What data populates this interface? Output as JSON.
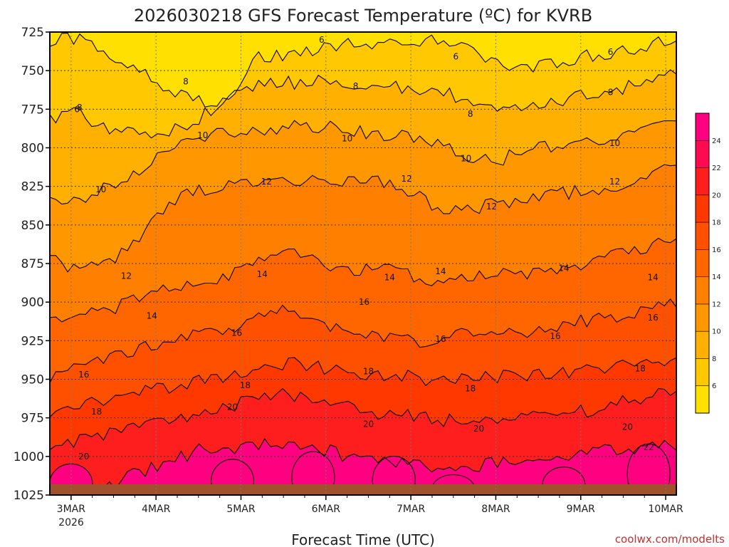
{
  "chart_data": {
    "type": "heatmap",
    "title": "2026030218 GFS Forecast Temperature (ºC) for KVRB",
    "xlabel": "Forecast Time (UTC)",
    "ylabel": "",
    "credit": "coolwx.com/modelts",
    "x_ticks": [
      "3MAR",
      "4MAR",
      "5MAR",
      "6MAR",
      "7MAR",
      "8MAR",
      "9MAR",
      "10MAR"
    ],
    "x_year": "2026",
    "y_axis_pressure_hPa": [
      725,
      750,
      775,
      800,
      825,
      850,
      875,
      900,
      925,
      950,
      975,
      1000,
      1025
    ],
    "y_tick_labels": [
      "725",
      "750",
      "775",
      "800",
      "825",
      "850",
      "875",
      "900",
      "925",
      "950",
      "975",
      "1000",
      "1025"
    ],
    "ylim": [
      1025,
      725
    ],
    "xlim_days": [
      2.75,
      10.125
    ],
    "grid": true,
    "legend": "right-colorbar",
    "colorbar_labels": [
      "6",
      "8",
      "10",
      "12",
      "14",
      "16",
      "18",
      "20",
      "22",
      "24"
    ],
    "color_levels": [
      4,
      6,
      8,
      10,
      12,
      14,
      16,
      18,
      20,
      22,
      24,
      26
    ],
    "colors": [
      "#ffe000",
      "#ffc800",
      "#ffb000",
      "#ff9800",
      "#ff8000",
      "#ff6600",
      "#ff5000",
      "#ff3800",
      "#ff1e1e",
      "#ff0a50",
      "#ff0080"
    ],
    "contour_levels": [
      6,
      8,
      10,
      12,
      14,
      16,
      18,
      20,
      22,
      24
    ],
    "ground_color": "#a0522d",
    "isotherm_pressure_hPa": {
      "6": [
        730,
        730,
        740,
        748,
        762,
        770,
        770,
        740,
        740,
        735,
        732,
        732,
        732,
        730,
        735,
        745,
        750,
        745,
        740,
        738,
        735,
        728
      ],
      "8": [
        780,
        778,
        790,
        790,
        788,
        782,
        765,
        760,
        758,
        756,
        758,
        760,
        762,
        762,
        770,
        778,
        775,
        770,
        765,
        762,
        758,
        750
      ],
      "10": [
        830,
        835,
        825,
        815,
        800,
        792,
        790,
        788,
        786,
        786,
        788,
        792,
        792,
        797,
        805,
        808,
        802,
        798,
        795,
        795,
        790,
        782
      ],
      "12": [
        870,
        880,
        875,
        860,
        835,
        828,
        825,
        820,
        822,
        820,
        822,
        820,
        828,
        838,
        840,
        836,
        832,
        830,
        828,
        825,
        820,
        812
      ],
      "14": [
        910,
        908,
        905,
        898,
        892,
        888,
        885,
        870,
        868,
        875,
        880,
        878,
        882,
        888,
        885,
        880,
        882,
        878,
        875,
        870,
        865,
        860
      ],
      "16": [
        948,
        940,
        935,
        930,
        925,
        920,
        918,
        908,
        905,
        915,
        920,
        922,
        925,
        925,
        920,
        918,
        920,
        915,
        912,
        910,
        905,
        900
      ],
      "18": [
        972,
        968,
        962,
        958,
        955,
        950,
        948,
        942,
        940,
        942,
        946,
        948,
        948,
        952,
        950,
        948,
        948,
        946,
        944,
        942,
        940,
        935
      ],
      "20": [
        998,
        990,
        985,
        980,
        978,
        970,
        968,
        962,
        960,
        965,
        968,
        972,
        972,
        976,
        978,
        975,
        976,
        972,
        970,
        965,
        962,
        958
      ],
      "22": [
        1030,
        1025,
        1020,
        1010,
        1005,
        995,
        995,
        992,
        990,
        995,
        1000,
        1002,
        1004,
        1008,
        1008,
        1004,
        1005,
        1000,
        998,
        995,
        994,
        992
      ]
    },
    "contour_labels": [
      {
        "text": "6",
        "t": 3.07,
        "p": 775
      },
      {
        "text": "6",
        "t": 5.95,
        "p": 730
      },
      {
        "text": "6",
        "t": 7.53,
        "p": 741
      },
      {
        "text": "6",
        "t": 9.35,
        "p": 738
      },
      {
        "text": "8",
        "t": 3.1,
        "p": 774
      },
      {
        "text": "8",
        "t": 4.35,
        "p": 757
      },
      {
        "text": "8",
        "t": 6.35,
        "p": 760
      },
      {
        "text": "8",
        "t": 7.7,
        "p": 778
      },
      {
        "text": "8",
        "t": 9.35,
        "p": 764
      },
      {
        "text": "10",
        "t": 3.35,
        "p": 827
      },
      {
        "text": "10",
        "t": 4.55,
        "p": 792
      },
      {
        "text": "10",
        "t": 6.25,
        "p": 794
      },
      {
        "text": "10",
        "t": 7.65,
        "p": 807
      },
      {
        "text": "10",
        "t": 9.4,
        "p": 797
      },
      {
        "text": "12",
        "t": 3.65,
        "p": 883
      },
      {
        "text": "12",
        "t": 5.3,
        "p": 822
      },
      {
        "text": "12",
        "t": 6.95,
        "p": 820
      },
      {
        "text": "12",
        "t": 7.95,
        "p": 838
      },
      {
        "text": "12",
        "t": 9.4,
        "p": 822
      },
      {
        "text": "14",
        "t": 3.95,
        "p": 909
      },
      {
        "text": "14",
        "t": 5.25,
        "p": 882
      },
      {
        "text": "14",
        "t": 6.75,
        "p": 884
      },
      {
        "text": "14",
        "t": 7.35,
        "p": 880
      },
      {
        "text": "14",
        "t": 8.8,
        "p": 878
      },
      {
        "text": "14",
        "t": 9.85,
        "p": 884
      },
      {
        "text": "16",
        "t": 3.15,
        "p": 947
      },
      {
        "text": "16",
        "t": 4.95,
        "p": 920
      },
      {
        "text": "16",
        "t": 6.45,
        "p": 900
      },
      {
        "text": "16",
        "t": 7.35,
        "p": 924
      },
      {
        "text": "16",
        "t": 8.7,
        "p": 922
      },
      {
        "text": "16",
        "t": 9.85,
        "p": 910
      },
      {
        "text": "18",
        "t": 3.3,
        "p": 971
      },
      {
        "text": "18",
        "t": 5.05,
        "p": 954
      },
      {
        "text": "18",
        "t": 6.5,
        "p": 945
      },
      {
        "text": "18",
        "t": 7.7,
        "p": 956
      },
      {
        "text": "18",
        "t": 9.7,
        "p": 943
      },
      {
        "text": "20",
        "t": 3.15,
        "p": 1000
      },
      {
        "text": "20",
        "t": 4.9,
        "p": 968
      },
      {
        "text": "20",
        "t": 6.5,
        "p": 979
      },
      {
        "text": "20",
        "t": 7.8,
        "p": 982
      },
      {
        "text": "20",
        "t": 9.55,
        "p": 981
      },
      {
        "text": "22",
        "t": 9.8,
        "p": 994
      }
    ]
  }
}
